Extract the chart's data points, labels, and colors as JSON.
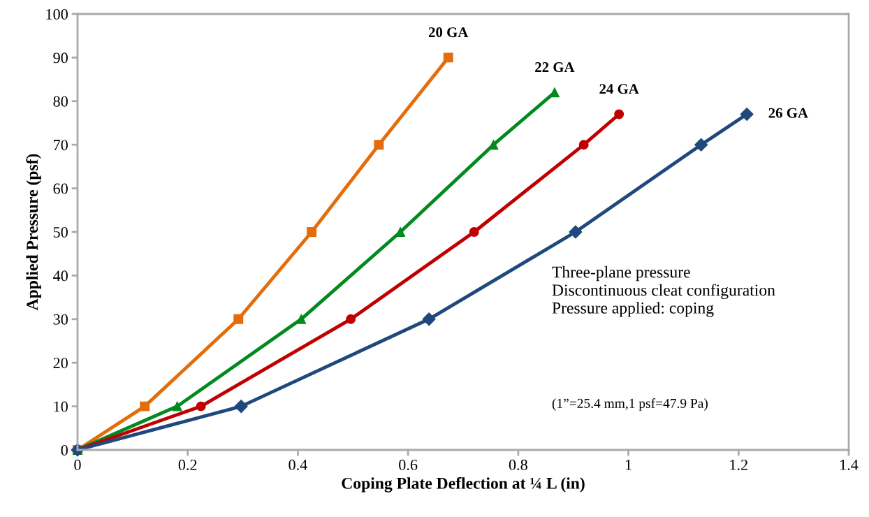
{
  "chart_data": {
    "type": "line",
    "xlabel": "Coping Plate Deflection at ¼ L (in)",
    "ylabel": "Applied Pressure (psf)",
    "xlim": [
      0,
      1.4
    ],
    "xticks": [
      0,
      0.2,
      0.4,
      0.6,
      0.8,
      1,
      1.2,
      1.4
    ],
    "ylim": [
      0,
      100
    ],
    "yticks": [
      0,
      10,
      20,
      30,
      40,
      50,
      60,
      70,
      80,
      90,
      100
    ],
    "grid": false,
    "legend": false,
    "line_style": "solid",
    "series": [
      {
        "name": "20 GA",
        "color": "#e46c0a",
        "marker": "square",
        "x": [
          0,
          0.122,
          0.292,
          0.425,
          0.547,
          0.673
        ],
        "values": [
          0,
          10,
          30,
          50,
          70,
          90
        ]
      },
      {
        "name": "22 GA",
        "color": "#008a1f",
        "marker": "triangle",
        "x": [
          0,
          0.181,
          0.406,
          0.586,
          0.755,
          0.866
        ],
        "values": [
          0,
          10,
          30,
          50,
          70,
          82
        ]
      },
      {
        "name": "24 GA",
        "color": "#c00000",
        "marker": "circle",
        "x": [
          0,
          0.224,
          0.496,
          0.72,
          0.919,
          0.983
        ],
        "values": [
          0,
          10,
          30,
          50,
          70,
          77
        ]
      },
      {
        "name": "26 GA",
        "color": "#1f497d",
        "marker": "diamond",
        "x": [
          0,
          0.297,
          0.638,
          0.904,
          1.132,
          1.215
        ],
        "values": [
          0,
          10,
          30,
          50,
          70,
          77
        ]
      }
    ],
    "annotations": [
      "Three-plane pressure\nDiscontinuous cleat configuration\nPressure applied: coping",
      "(1”=25.4 mm,1 psf=47.9 Pa)"
    ]
  }
}
